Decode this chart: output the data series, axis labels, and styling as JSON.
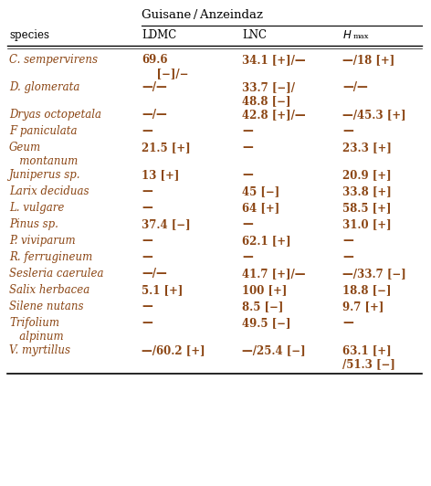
{
  "title": "Guisane / Anzeindaz",
  "rows": [
    {
      "species": "C. sempervirens",
      "LDMC": "69.6\n    [−]/−",
      "LNC": "34.1 [+]/—",
      "Hmax": "—/18 [+]",
      "tall": true
    },
    {
      "species": "D. glomerata",
      "LDMC": "—/—",
      "LNC": "33.7 [−]/\n48.8 [−]",
      "Hmax": "—/—",
      "tall": true
    },
    {
      "species": "Dryas octopetala",
      "LDMC": "—/—",
      "LNC": "42.8 [+]/—",
      "Hmax": "—/45.3 [+]",
      "tall": false
    },
    {
      "species": "F paniculata",
      "LDMC": "—",
      "LNC": "—",
      "Hmax": "—",
      "tall": false
    },
    {
      "species": "Geum\n   montanum",
      "LDMC": "21.5 [+]",
      "LNC": "—",
      "Hmax": "23.3 [+]",
      "tall": true
    },
    {
      "species": "Juniperus sp.",
      "LDMC": "13 [+]",
      "LNC": "—",
      "Hmax": "20.9 [+]",
      "tall": false
    },
    {
      "species": "Larix deciduas",
      "LDMC": "—",
      "LNC": "45 [−]",
      "Hmax": "33.8 [+]",
      "tall": false
    },
    {
      "species": "L. vulgare",
      "LDMC": "—",
      "LNC": "64 [+]",
      "Hmax": "58.5 [+]",
      "tall": false
    },
    {
      "species": "Pinus sp.",
      "LDMC": "37.4 [−]",
      "LNC": "—",
      "Hmax": "31.0 [+]",
      "tall": false
    },
    {
      "species": "P. viviparum",
      "LDMC": "—",
      "LNC": "62.1 [+]",
      "Hmax": "—",
      "tall": false
    },
    {
      "species": "R. ferrugineum",
      "LDMC": "—",
      "LNC": "—",
      "Hmax": "—",
      "tall": false
    },
    {
      "species": "Sesleria caerulea",
      "LDMC": "—/—",
      "LNC": "41.7 [+]/—",
      "Hmax": "—/33.7 [−]",
      "tall": false
    },
    {
      "species": "Salix herbacea",
      "LDMC": "5.1 [+]",
      "LNC": "100 [+]",
      "Hmax": "18.8 [−]",
      "tall": false
    },
    {
      "species": "Silene nutans",
      "LDMC": "—",
      "LNC": "8.5 [−]",
      "Hmax": "9.7 [+]",
      "tall": false
    },
    {
      "species": "Trifolium\n   alpinum",
      "LDMC": "—",
      "LNC": "49.5 [−]",
      "Hmax": "—",
      "tall": true
    },
    {
      "species": "V. myrtillus",
      "LDMC": "—/60.2 [+]",
      "LNC": "—/25.4 [−]",
      "Hmax": "63.1 [+]\n/51.3 [−]",
      "tall": true
    }
  ],
  "text_color": "#8B4513",
  "header_color": "#000000",
  "bg_color": "#ffffff",
  "fontsize": 8.5,
  "title_fontsize": 9.5
}
